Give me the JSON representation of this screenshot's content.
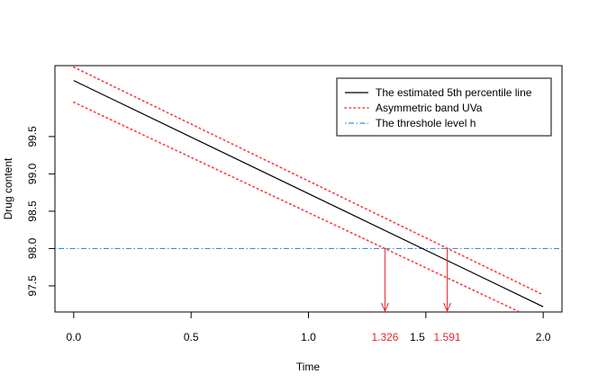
{
  "chart_data": {
    "type": "line",
    "title": "",
    "xlabel": "Time",
    "ylabel": "Drug content",
    "xlim": [
      -0.08,
      2.08
    ],
    "ylim": [
      97.15,
      100.45
    ],
    "xticks": [
      {
        "value": 0.0,
        "label": "0.0"
      },
      {
        "value": 0.5,
        "label": "0.5"
      },
      {
        "value": 1.0,
        "label": "1.0"
      },
      {
        "value": 1.5,
        "label": "1.5"
      },
      {
        "value": 2.0,
        "label": "2.0"
      }
    ],
    "yticks": [
      {
        "value": 97.5,
        "label": "97.5"
      },
      {
        "value": 98.0,
        "label": "98.0"
      },
      {
        "value": 98.5,
        "label": "98.5"
      },
      {
        "value": 99.0,
        "label": "99.0"
      },
      {
        "value": 99.5,
        "label": "99.5"
      }
    ],
    "series": [
      {
        "name": "The estimated 5th percentile line",
        "style": "solid",
        "color": "#000000",
        "x": [
          0,
          2
        ],
        "y": [
          100.25,
          97.22
        ]
      },
      {
        "name": "Asymmetric band UVa",
        "style": "dotted",
        "color": "#ff3b3b",
        "x": [
          0,
          2
        ],
        "y": [
          100.43,
          97.38
        ]
      },
      {
        "name": "",
        "style": "dotted",
        "color": "#ff3b3b",
        "x": [
          0,
          1.9
        ],
        "y": [
          99.96,
          97.15
        ]
      }
    ],
    "threshold": {
      "name": "The threshole level h",
      "value": 98.0,
      "style": "dotdash",
      "color": "#3b8fd6"
    },
    "markers": [
      {
        "x": 1.326,
        "label": "1.326",
        "color": "#e8272b"
      },
      {
        "x": 1.591,
        "label": "1.591",
        "color": "#e8272b"
      }
    ],
    "legend_position": "top-right",
    "grid": false
  }
}
